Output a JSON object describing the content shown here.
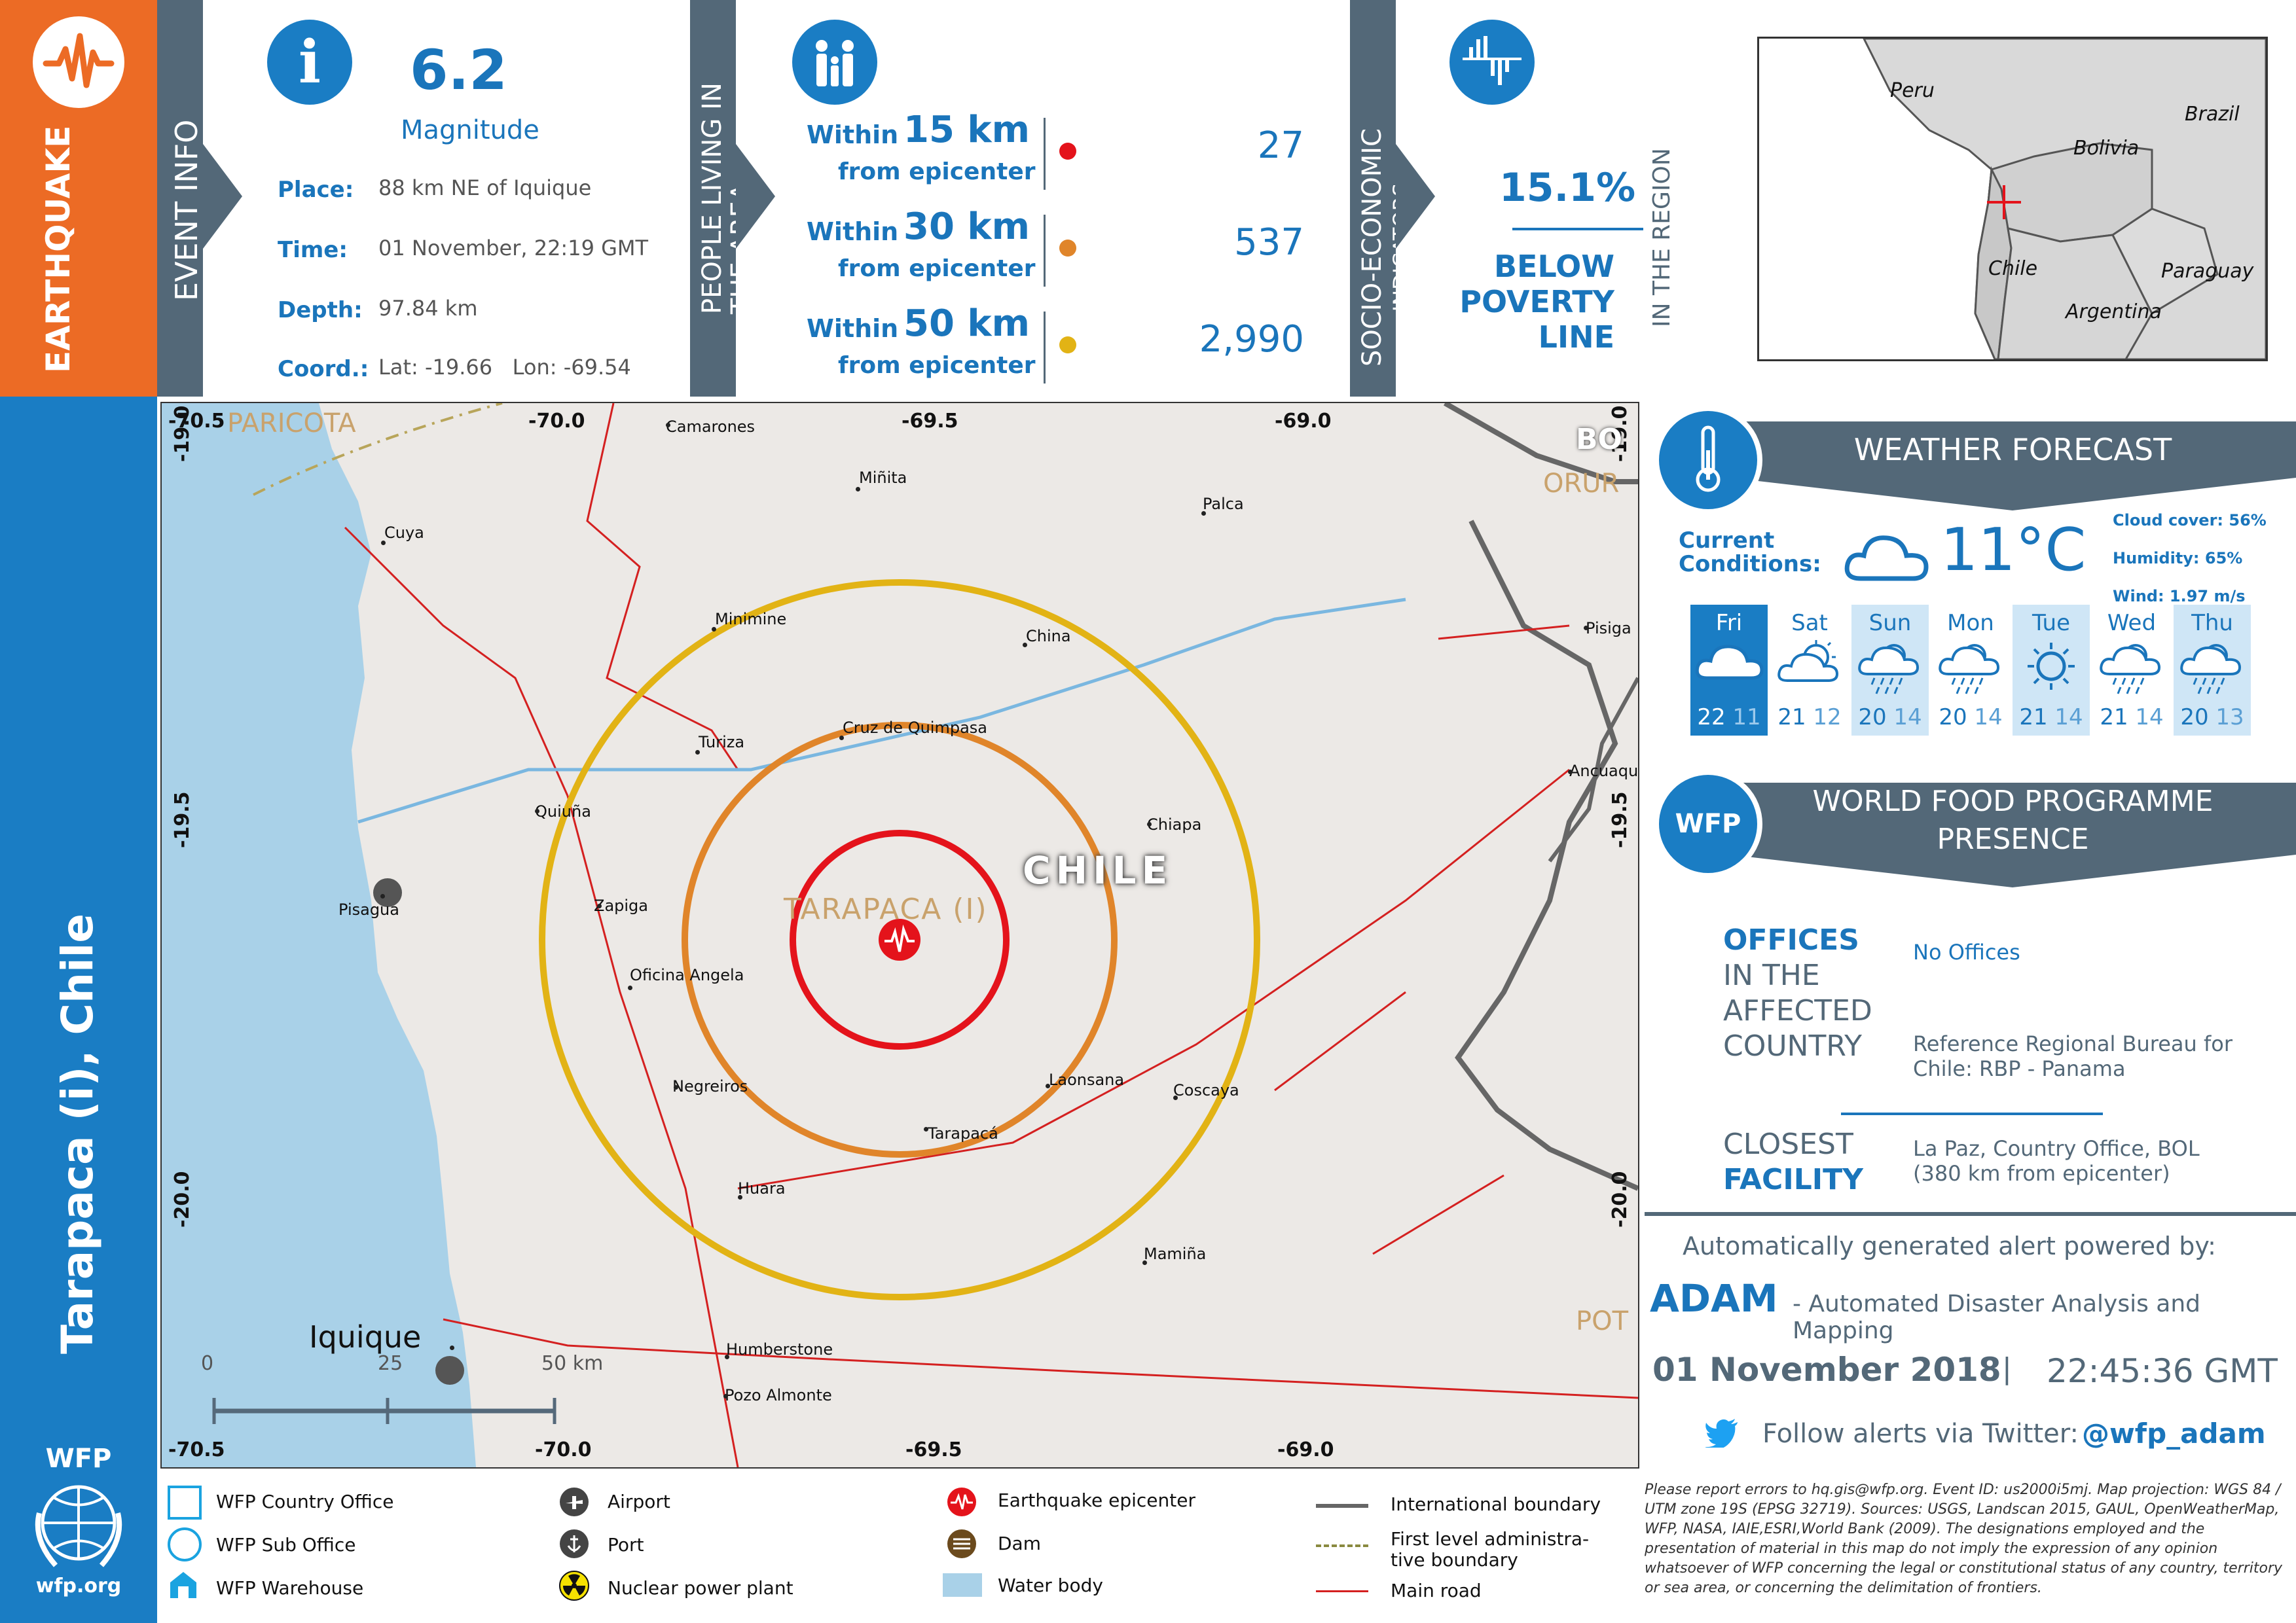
{
  "header": {
    "hazard_label": "EARTHQUAKE",
    "event_info_label": "EVENT INFO",
    "magnitude_value": "6.2",
    "magnitude_label": "Magnitude",
    "place_label": "Place:",
    "place_value": "88 km NE of Iquique",
    "time_label": "Time:",
    "time_value": "01 November, 22:19 GMT",
    "depth_label": "Depth:",
    "depth_value": "97.84 km",
    "coord_label": "Coord.:",
    "coord_value": "Lat: -19.66   Lon: -69.54",
    "people_label_1": "PEOPLE LIVING IN",
    "people_label_2": "THE AREA",
    "rings": [
      {
        "within": "Within",
        "km": "15 km",
        "from": "from epicenter",
        "pop": "27",
        "color": "#e4131b"
      },
      {
        "within": "Within",
        "km": "30 km",
        "from": "from epicenter",
        "pop": "537",
        "color": "#e0852a"
      },
      {
        "within": "Within",
        "km": "50 km",
        "from": "from epicenter",
        "pop": "2,990",
        "color": "#e2b315"
      }
    ],
    "socio_label_1": "SOCIO-ECONOMIC",
    "socio_label_2": "INDICATORS",
    "poverty_value": "15.1%",
    "poverty_line_1": "BELOW",
    "poverty_line_2": "POVERTY",
    "poverty_line_3": "LINE",
    "in_region": "IN THE REGION"
  },
  "region_title": "Tarapaca (i), Chile",
  "inset_map": {
    "countries": [
      "Peru",
      "Brazil",
      "Bolivia",
      "Chile",
      "Paraguay",
      "Argentina"
    ]
  },
  "map": {
    "coords_top": [
      "-70.5",
      "-70.0",
      "-69.5",
      "-69.0"
    ],
    "coords_bottom": [
      "-70.5",
      "-70.0",
      "-69.5",
      "-69.0"
    ],
    "coords_left": [
      "-19.0",
      "-19.5",
      "-20.0"
    ],
    "coords_right": [
      "-19.0",
      "-19.5",
      "-20.0"
    ],
    "country_label": "CHILE",
    "region_label": "TARAPACA (I)",
    "neighbor_labels": [
      "PARICOTA",
      "BO",
      "ORUR",
      "POT"
    ],
    "towns": [
      "Camarones",
      "Miñita",
      "Palca",
      "Cuya",
      "Minimine",
      "China",
      "Pisiga",
      "Turiza",
      "Cruz de Quimpasa",
      "Ancuaque",
      "Quiuña",
      "Chiapa",
      "Pisagua",
      "Zapiga",
      "Oficina Angela",
      "Negreiros",
      "Laonsana",
      "Coscaya",
      "Tarapacá",
      "Huara",
      "Mamiña",
      "Iquique",
      "Humberstone",
      "Pozo Almonte"
    ],
    "scale_labels": [
      "0",
      "25",
      "50 km"
    ]
  },
  "weather": {
    "title": "WEATHER FORECAST",
    "current_label_1": "Current",
    "current_label_2": "Conditions:",
    "temperature": "11°C",
    "cloud_cover": "Cloud cover: 56%",
    "humidity": "Humidity: 65%",
    "wind": "Wind: 1.97 m/s",
    "days": [
      {
        "name": "Fri",
        "hi": "22",
        "lo": "11",
        "icon": "cloud-icon"
      },
      {
        "name": "Sat",
        "hi": "21",
        "lo": "12",
        "icon": "sun-cloud-icon"
      },
      {
        "name": "Sun",
        "hi": "20",
        "lo": "14",
        "icon": "rain-icon"
      },
      {
        "name": "Mon",
        "hi": "20",
        "lo": "14",
        "icon": "rain-icon"
      },
      {
        "name": "Tue",
        "hi": "21",
        "lo": "14",
        "icon": "sun-icon"
      },
      {
        "name": "Wed",
        "hi": "21",
        "lo": "14",
        "icon": "rain-icon"
      },
      {
        "name": "Thu",
        "hi": "20",
        "lo": "13",
        "icon": "rain-icon"
      }
    ]
  },
  "wfp_presence": {
    "badge": "WFP",
    "title_1": "WORLD FOOD PROGRAMME",
    "title_2": "PRESENCE",
    "offices_1": "OFFICES",
    "offices_2": "IN THE",
    "offices_3": "AFFECTED",
    "offices_4": "COUNTRY",
    "offices_value": "No Offices",
    "bureau_value_1": "Reference Regional Bureau for",
    "bureau_value_2": "Chile: RBP - Panama",
    "closest_1": "CLOSEST",
    "closest_2": "FACILITY",
    "closest_value_1": "La Paz, Country Office, BOL",
    "closest_value_2": "(380 km from epicenter)"
  },
  "footer": {
    "powered_by": "Automatically generated alert powered by:",
    "adam": "ADAM",
    "adam_desc": "- Automated Disaster Analysis and Mapping",
    "date": "01 November 2018",
    "separator": "|",
    "time": "22:45:36 GMT",
    "twitter_prefix": "Follow alerts via Twitter:",
    "twitter_handle": "@wfp_adam",
    "disclaimer": "Please report errors to hq.gis@wfp.org. Event ID: us2000i5mj. Map projection: WGS 84 / UTM zone 19S (EPSG 32719). Sources: USGS, Landscan 2015, GAUL, OpenWeatherMap, WFP, NASA, IAIE,ESRI,World Bank (2009). The designations employed and the presentation of material in this map do not imply the expression of any opinion whatsoever of WFP concerning the legal or constitutional status of any country, territory or sea area, or concerning the delimitation of frontiers.",
    "wfp_logo_text": "WFP",
    "wfp_url": "wfp.org"
  },
  "legend": {
    "country_office": "WFP Country Office",
    "sub_office": "WFP Sub Office",
    "warehouse": "WFP Warehouse",
    "airport": "Airport",
    "port": "Port",
    "nuclear": "Nuclear power plant",
    "epicenter": "Earthquake epicenter",
    "dam": "Dam",
    "water": "Water body",
    "intl_boundary": "International boundary",
    "admin_boundary_1": "First level administra-",
    "admin_boundary_2": "tive boundary",
    "main_road": "Main road"
  }
}
